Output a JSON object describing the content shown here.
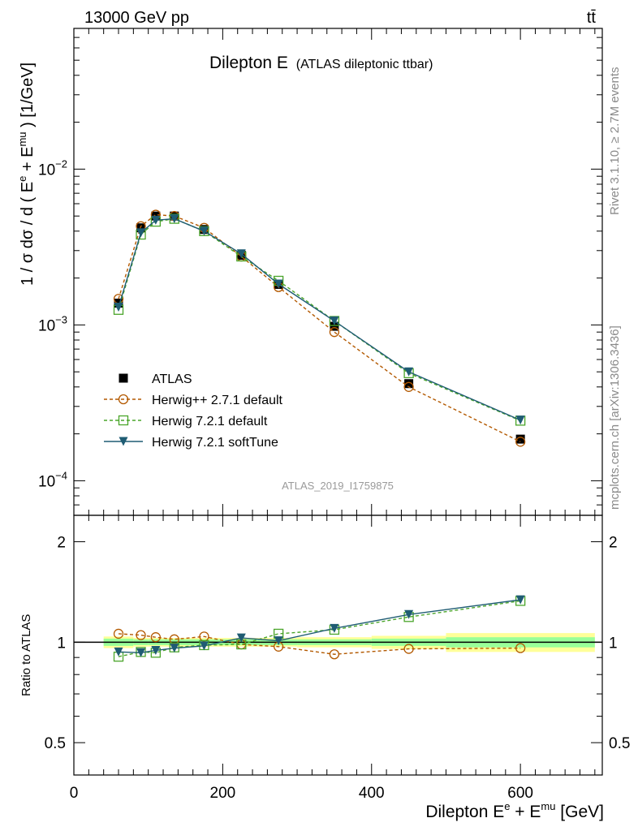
{
  "header": {
    "left": "13000 GeV pp",
    "right": "tt̄"
  },
  "side_labels": {
    "rivet": "Rivet 3.1.10, ≥ 2.7M events",
    "mcplots": "mcplots.cern.ch [arXiv:1306.3436]"
  },
  "colors": {
    "data": "#000000",
    "herwigpp": "#b35900",
    "herwig_default": "#4aa52a",
    "herwig_soft": "#1f5c73",
    "band_yellow": "#ffff99",
    "band_green": "#99ff99"
  },
  "chart_data": [
    {
      "type": "line",
      "title": "Dilepton E",
      "subtitle": "(ATLAS dileptonic ttbar)",
      "analysis_tag": "ATLAS_2019_I1759875",
      "ylabel_parts": {
        "a": "1 / σ  dσ / d ( E",
        "sup1": "e",
        "b": " + E",
        "sup2": "mu",
        "c": " ) [1/GeV]"
      },
      "yscale": "log",
      "ylim": [
        6e-05,
        0.08
      ],
      "xlim": [
        0,
        710
      ],
      "yticks": [
        {
          "base": "10",
          "exp": "−2"
        },
        {
          "base": "10",
          "exp": "−3"
        },
        {
          "base": "10",
          "exp": "−4"
        }
      ],
      "x": [
        60,
        90,
        110,
        135,
        175,
        225,
        275,
        350,
        450,
        600
      ],
      "series": [
        {
          "name": "ATLAS",
          "marker": "filled-square",
          "values": [
            0.00138,
            0.0042,
            0.005,
            0.005,
            0.0041,
            0.0028,
            0.00182,
            0.00098,
            0.00042,
            0.000185
          ]
        },
        {
          "name": "Herwig++ 2.7.1 default",
          "marker": "open-circle",
          "line": "dashed",
          "values": [
            0.00147,
            0.0043,
            0.0051,
            0.005,
            0.0042,
            0.00275,
            0.00175,
            0.0009,
            0.0004,
            0.000178
          ]
        },
        {
          "name": "Herwig 7.2.1 default",
          "marker": "open-square",
          "line": "dashed",
          "values": [
            0.00125,
            0.0038,
            0.0046,
            0.0048,
            0.004,
            0.00275,
            0.00192,
            0.00106,
            0.00049,
            0.000243
          ]
        },
        {
          "name": "Herwig 7.2.1 softTune",
          "marker": "filled-triangle-down",
          "line": "solid",
          "values": [
            0.0013,
            0.0039,
            0.0047,
            0.0048,
            0.004,
            0.00286,
            0.00183,
            0.00106,
            0.0005,
            0.000245
          ]
        }
      ],
      "legend_position": "lower-left"
    },
    {
      "type": "line",
      "ylabel": "Ratio to ATLAS",
      "xlabel_parts": {
        "a": "Dilepton E",
        "sup1": "e",
        "b": " + E",
        "sup2": "mu",
        "c": " [GeV]"
      },
      "ylim": [
        0.4,
        2.4
      ],
      "xlim": [
        0,
        710
      ],
      "yticks": [
        "2",
        "1",
        "0.5"
      ],
      "xticks": [
        "0",
        "200",
        "400",
        "600"
      ],
      "x": [
        60,
        90,
        110,
        135,
        175,
        225,
        275,
        350,
        450,
        600
      ],
      "bands": [
        {
          "xmin": 40,
          "xmax": 80,
          "yellow": [
            0.96,
            1.04
          ],
          "green": [
            0.975,
            1.025
          ]
        },
        {
          "xmin": 80,
          "xmax": 100,
          "yellow": [
            0.97,
            1.03
          ],
          "green": [
            0.98,
            1.02
          ]
        },
        {
          "xmin": 100,
          "xmax": 120,
          "yellow": [
            0.97,
            1.03
          ],
          "green": [
            0.98,
            1.02
          ]
        },
        {
          "xmin": 120,
          "xmax": 150,
          "yellow": [
            0.97,
            1.03
          ],
          "green": [
            0.98,
            1.02
          ]
        },
        {
          "xmin": 150,
          "xmax": 200,
          "yellow": [
            0.97,
            1.03
          ],
          "green": [
            0.98,
            1.02
          ]
        },
        {
          "xmin": 200,
          "xmax": 250,
          "yellow": [
            0.97,
            1.03
          ],
          "green": [
            0.98,
            1.02
          ]
        },
        {
          "xmin": 250,
          "xmax": 300,
          "yellow": [
            0.97,
            1.03
          ],
          "green": [
            0.98,
            1.02
          ]
        },
        {
          "xmin": 300,
          "xmax": 400,
          "yellow": [
            0.965,
            1.035
          ],
          "green": [
            0.98,
            1.02
          ]
        },
        {
          "xmin": 400,
          "xmax": 500,
          "yellow": [
            0.955,
            1.045
          ],
          "green": [
            0.975,
            1.025
          ]
        },
        {
          "xmin": 500,
          "xmax": 700,
          "yellow": [
            0.935,
            1.065
          ],
          "green": [
            0.965,
            1.035
          ]
        }
      ],
      "series": [
        {
          "name": "Herwig++ 2.7.1 default",
          "values": [
            1.06,
            1.05,
            1.035,
            1.02,
            1.04,
            0.985,
            0.97,
            0.92,
            0.955,
            0.96
          ]
        },
        {
          "name": "Herwig 7.2.1 default",
          "values": [
            0.905,
            0.935,
            0.93,
            0.965,
            0.98,
            0.985,
            1.06,
            1.09,
            1.19,
            1.33
          ]
        },
        {
          "name": "Herwig 7.2.1 softTune",
          "values": [
            0.935,
            0.93,
            0.945,
            0.96,
            0.975,
            1.03,
            1.01,
            1.1,
            1.21,
            1.34
          ]
        }
      ]
    }
  ]
}
